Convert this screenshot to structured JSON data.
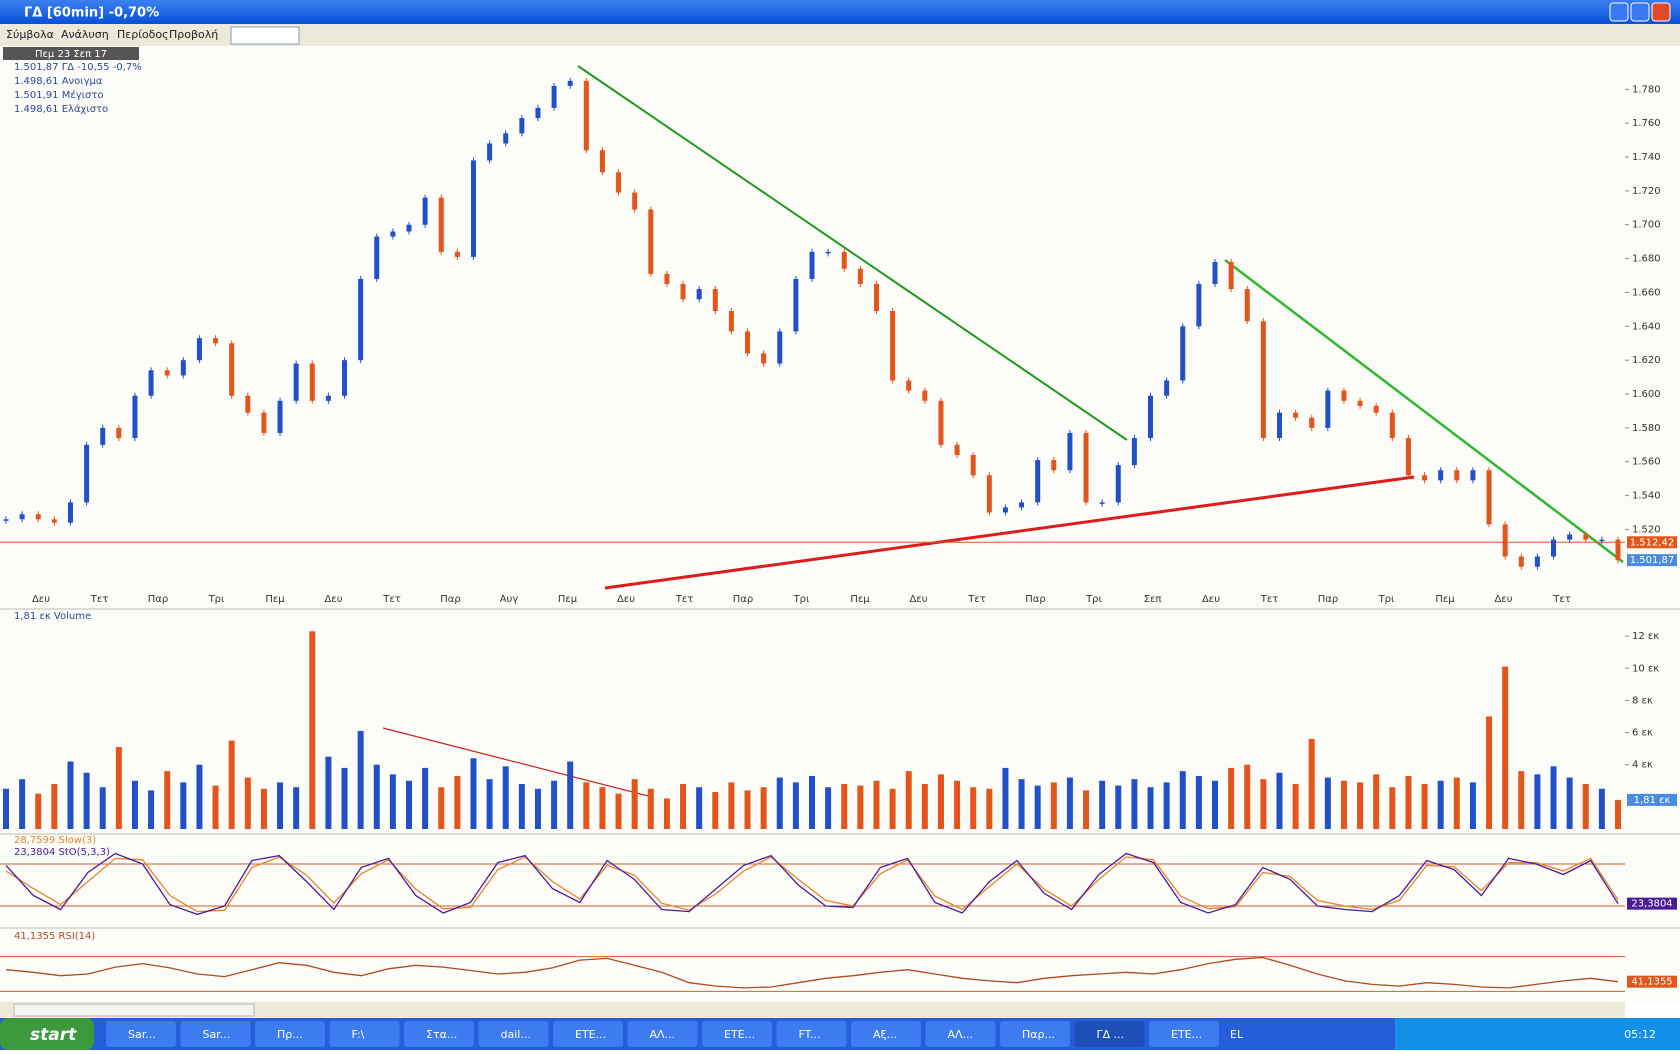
{
  "window": {
    "title": "ΓΔ [60min] -0,70%",
    "menu": [
      "Σύμβολα",
      "Ανάλυση",
      "Περίοδος",
      "Προβολή"
    ]
  },
  "price_pane": {
    "info_header": "Πεμ 23 Σεπ 17",
    "info_lines": [
      "1.501,87 ΓΔ -10,55 -0,7%",
      "1.498,61 Ανοιγμα",
      "1.501,91 Μέγιστο",
      "1.498,61 Ελάχιστο"
    ],
    "ylim": [
      1486,
      1805
    ],
    "yticks": [
      {
        "value": 1780,
        "label": "1.780"
      },
      {
        "value": 1760,
        "label": "1.760"
      },
      {
        "value": 1740,
        "label": "1.740"
      },
      {
        "value": 1720,
        "label": "1.720"
      },
      {
        "value": 1700,
        "label": "1.700"
      },
      {
        "value": 1680,
        "label": "1.680"
      },
      {
        "value": 1660,
        "label": "1.660"
      },
      {
        "value": 1640,
        "label": "1.640"
      },
      {
        "value": 1620,
        "label": "1.620"
      },
      {
        "value": 1600,
        "label": "1.600"
      },
      {
        "value": 1580,
        "label": "1.580"
      },
      {
        "value": 1560,
        "label": "1.560"
      },
      {
        "value": 1540,
        "label": "1.540"
      },
      {
        "value": 1520,
        "label": "1.520"
      }
    ],
    "xlabels": [
      "Δευ",
      "Τετ",
      "Παρ",
      "Τρι",
      "Πεμ",
      "Δευ",
      "Τετ",
      "Παρ",
      "Αυγ",
      "Πεμ",
      "Δευ",
      "Τετ",
      "Παρ",
      "Τρι",
      "Πεμ",
      "Δευ",
      "Τετ",
      "Παρ",
      "Τρι",
      "Σεπ",
      "Δευ",
      "Τετ",
      "Παρ",
      "Τρι",
      "Πεμ",
      "Δευ",
      "Τετ"
    ],
    "close": [
      1526,
      1529,
      1526,
      1524,
      1536,
      1570,
      1580,
      1574,
      1599,
      1614,
      1611,
      1620,
      1633,
      1630,
      1599,
      1589,
      1577,
      1596,
      1618,
      1596,
      1599,
      1620,
      1668,
      1693,
      1696,
      1700,
      1716,
      1684,
      1681,
      1738,
      1748,
      1754,
      1763,
      1769,
      1782,
      1785,
      1744,
      1731,
      1719,
      1709,
      1671,
      1665,
      1656,
      1662,
      1649,
      1637,
      1624,
      1618,
      1637,
      1668,
      1684,
      1684,
      1674,
      1665,
      1649,
      1608,
      1602,
      1596,
      1570,
      1564,
      1552,
      1530,
      1533,
      1536,
      1561,
      1555,
      1577,
      1536,
      1536,
      1558,
      1574,
      1599,
      1608,
      1640,
      1665,
      1678,
      1662,
      1643,
      1574,
      1589,
      1586,
      1580,
      1602,
      1596,
      1593,
      1589,
      1574,
      1552,
      1549,
      1555,
      1549,
      1555,
      1523,
      1504,
      1498,
      1504,
      1514,
      1517,
      1514,
      1514,
      1501.87
    ],
    "up_color": "#2250c8",
    "down_color": "#e2561c",
    "ref_level": {
      "value": 1512.42,
      "label": "1.512,42",
      "color": "#e2561c"
    },
    "last_label": {
      "value": 1501.87,
      "label": "1.501,87"
    }
  },
  "volume_pane": {
    "title": "1,81 εκ Volume",
    "ylim": [
      0,
      13.5
    ],
    "yticks": [
      {
        "value": 12,
        "label": "12 εκ"
      },
      {
        "value": 10,
        "label": "10 εκ"
      },
      {
        "value": 8,
        "label": "8 εκ"
      },
      {
        "value": 6,
        "label": "6 εκ"
      },
      {
        "value": 4,
        "label": "4 εκ"
      }
    ],
    "values": [
      2.5,
      3.1,
      2.2,
      2.8,
      4.2,
      3.5,
      2.6,
      5.1,
      3.0,
      2.4,
      3.6,
      2.9,
      4.0,
      2.7,
      5.5,
      3.2,
      2.5,
      2.9,
      2.6,
      12.3,
      4.5,
      3.8,
      6.1,
      4.0,
      3.4,
      3.0,
      3.8,
      2.6,
      3.3,
      4.4,
      3.1,
      3.9,
      2.8,
      2.5,
      3.0,
      4.2,
      2.9,
      2.6,
      2.2,
      3.1,
      2.5,
      1.9,
      2.8,
      2.6,
      2.3,
      2.9,
      2.4,
      2.6,
      3.2,
      2.9,
      3.3,
      2.6,
      2.8,
      2.7,
      3.0,
      2.5,
      3.6,
      2.8,
      3.4,
      3.0,
      2.6,
      2.5,
      3.8,
      3.1,
      2.7,
      2.9,
      3.2,
      2.4,
      3.0,
      2.7,
      3.1,
      2.6,
      2.9,
      3.6,
      3.3,
      3.0,
      3.8,
      4.0,
      3.1,
      3.5,
      2.8,
      5.6,
      3.2,
      3.0,
      2.9,
      3.4,
      2.6,
      3.3,
      2.8,
      3.0,
      3.2,
      2.9,
      7.0,
      10.1,
      3.6,
      3.4,
      3.9,
      3.2,
      2.8,
      2.5,
      1.81
    ],
    "last_label": {
      "value": 1.81,
      "label": "1,81 εκ"
    }
  },
  "stoch_pane": {
    "ylim": [
      0,
      100
    ],
    "levels": [
      80,
      20
    ],
    "level_color": "#d0602a",
    "series": [
      {
        "name": "28,7599 Slow(3)",
        "color": "#e8842a",
        "values": [
          70,
          45,
          22,
          55,
          88,
          86,
          35,
          12,
          14,
          75,
          90,
          64,
          24,
          66,
          86,
          44,
          16,
          18,
          72,
          90,
          55,
          30,
          78,
          64,
          24,
          14,
          38,
          70,
          90,
          58,
          28,
          20,
          66,
          86,
          34,
          15,
          48,
          80,
          44,
          20,
          58,
          90,
          86,
          34,
          16,
          19,
          68,
          62,
          28,
          20,
          15,
          28,
          78,
          76,
          42,
          82,
          82,
          70,
          88,
          28.7599
        ]
      },
      {
        "name": "23,3804 StO(5,3,3)",
        "color": "#4b1a9c",
        "values": [
          78,
          35,
          15,
          68,
          95,
          80,
          22,
          8,
          20,
          85,
          92,
          55,
          15,
          75,
          88,
          35,
          10,
          25,
          82,
          92,
          45,
          25,
          85,
          58,
          15,
          12,
          45,
          78,
          92,
          50,
          20,
          18,
          75,
          88,
          25,
          10,
          55,
          85,
          38,
          15,
          65,
          95,
          82,
          25,
          10,
          22,
          75,
          58,
          20,
          15,
          12,
          35,
          85,
          72,
          35,
          88,
          80,
          65,
          85,
          23.3804
        ]
      }
    ],
    "last_label": {
      "value": 23.3804,
      "label": "23,3804"
    }
  },
  "rsi_pane": {
    "ylim": [
      20,
      80
    ],
    "levels": [
      70,
      30
    ],
    "level_color": "#d0602a",
    "series": [
      {
        "name": "41,1355 RSI(14)",
        "color": "#b04a20",
        "values": [
          55,
          52,
          48,
          50,
          58,
          62,
          57,
          50,
          47,
          55,
          63,
          60,
          52,
          48,
          56,
          60,
          58,
          54,
          50,
          52,
          57,
          66,
          68,
          60,
          52,
          40,
          36,
          34,
          35,
          40,
          45,
          48,
          52,
          55,
          50,
          45,
          42,
          40,
          45,
          48,
          50,
          52,
          50,
          55,
          62,
          67,
          69,
          60,
          50,
          42,
          38,
          36,
          40,
          38,
          35,
          34,
          38,
          42,
          45,
          41.1355
        ]
      }
    ],
    "last_label": {
      "value": 41.1355,
      "label": "41,1355"
    }
  },
  "taskbar": {
    "start": "start",
    "items": [
      "Sar...",
      "Sar...",
      "Πρ...",
      "F:\\",
      "Στα...",
      "dail...",
      "ETE...",
      "ΑΛ...",
      "ETE...",
      "FT...",
      "Αξ...",
      "ΑΛ...",
      "Παρ...",
      "ΓΔ ...",
      "ETE..."
    ],
    "lang": "EL",
    "clock": "05:12"
  }
}
